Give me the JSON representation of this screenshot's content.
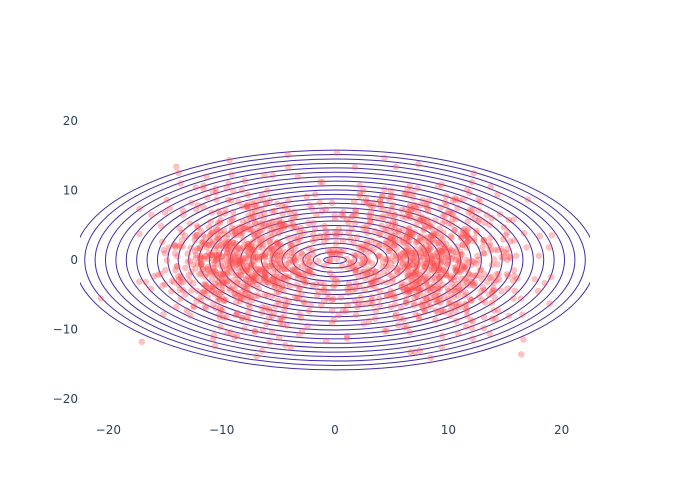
{
  "chart_data": {
    "type": "scatter",
    "xlim": [
      -22.5,
      22.5
    ],
    "ylim": [
      -23,
      23
    ],
    "xticks": [
      -20,
      -10,
      0,
      10,
      20
    ],
    "yticks": [
      -20,
      -10,
      0,
      10,
      20
    ],
    "xtick_labels": [
      "−20",
      "−10",
      "0",
      "10",
      "20"
    ],
    "ytick_labels": [
      "−20",
      "−10",
      "0",
      "10",
      "20"
    ],
    "grid": false,
    "legend": "none",
    "colors": {
      "points": "#ff4d4d",
      "contours": "#3b1fa3"
    },
    "points_count": 1700,
    "points_description": "Random scatter with higher density in two clusters",
    "clusters": [
      {
        "center": [
          -7.5,
          0
        ],
        "std": [
          4.0,
          5.0
        ]
      },
      {
        "center": [
          8.0,
          0
        ],
        "std": [
          4.0,
          5.0
        ]
      }
    ],
    "contour": {
      "type": "ellipse",
      "center": [
        0,
        0
      ],
      "count": 25,
      "rx_range": [
        1.0,
        23.0
      ],
      "ry_range": [
        0.5,
        15.8
      ]
    }
  }
}
